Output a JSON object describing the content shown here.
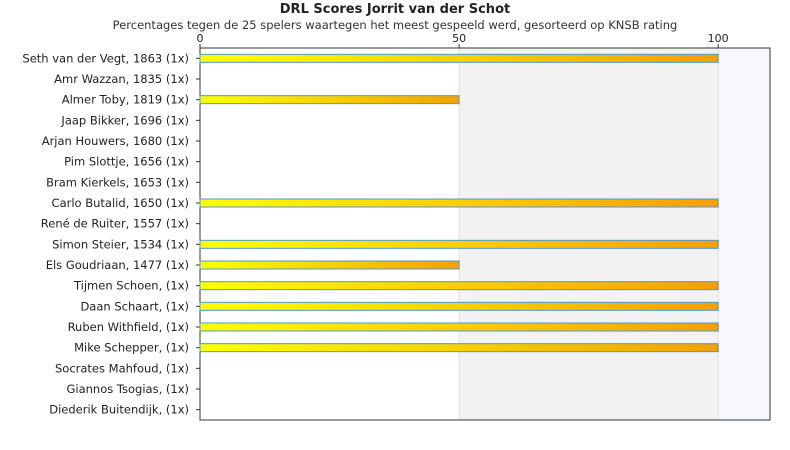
{
  "chart_data": {
    "type": "bar",
    "orientation": "horizontal",
    "title": "DRL Scores Jorrit van der Schot",
    "subtitle": "Percentages tegen de 25 spelers waartegen het meest gespeeld werd, gesorteerd op KNSB rating",
    "xlabel": "",
    "ylabel": "",
    "xlim": [
      0,
      110
    ],
    "x_ticks": [
      0,
      50,
      100
    ],
    "grid": false,
    "categories": [
      "Seth van der Vegt, 1863 (1x)",
      "Amr Wazzan, 1835 (1x)",
      "Almer Toby, 1819 (1x)",
      "Jaap Bikker, 1696 (1x)",
      "Arjan Houwers, 1680 (1x)",
      "Pim Slottje, 1656 (1x)",
      "Bram Kierkels, 1653 (1x)",
      "Carlo Butalid, 1650 (1x)",
      "René de Ruiter, 1557 (1x)",
      "Simon Steier, 1534 (1x)",
      "Els Goudriaan, 1477 (1x)",
      "Tijmen Schoen,  (1x)",
      "Daan Schaart,  (1x)",
      "Ruben Withfield,  (1x)",
      "Mike Schepper,  (1x)",
      "Socrates Mahfoud,  (1x)",
      "Giannos Tsogias,  (1x)",
      "Diederik Buitendijk,  (1x)"
    ],
    "values": [
      100,
      0,
      50,
      0,
      0,
      0,
      0,
      100,
      0,
      100,
      50,
      100,
      100,
      100,
      100,
      0,
      0,
      0
    ],
    "colors": {
      "bar_start": "#ffff00",
      "bar_end": "#f5a000",
      "bar_border": "#4a9ad8",
      "band_50_100": "#f2f2f2",
      "band_100_plus": "#f7f8fb",
      "axis": "#333333"
    }
  }
}
